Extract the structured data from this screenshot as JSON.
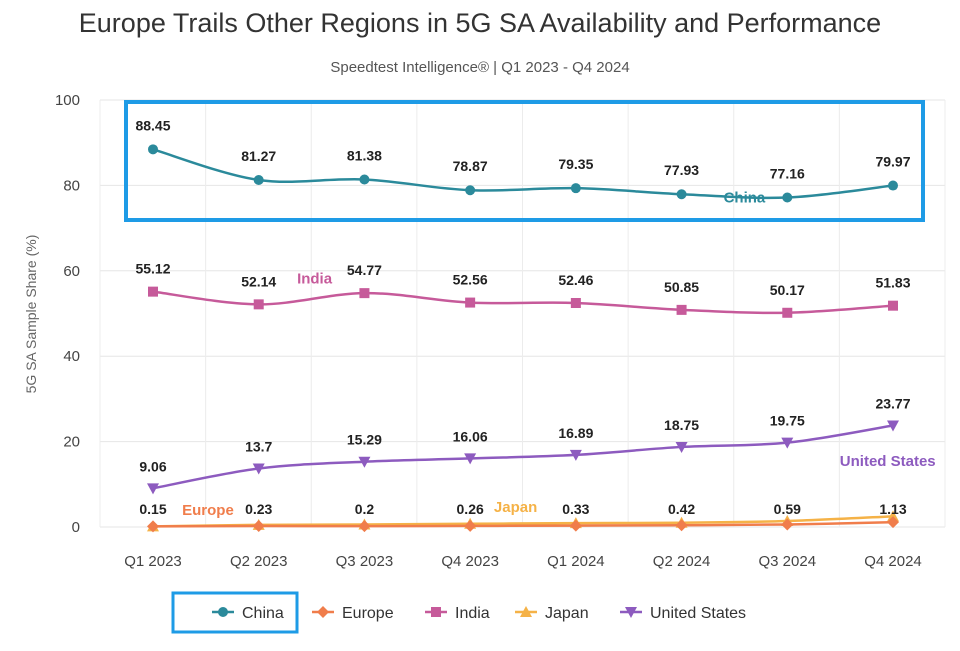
{
  "title": "Europe Trails Other Regions in 5G SA Availability and Performance",
  "subtitle": "Speedtest Intelligence® | Q1 2023 - Q4 2024",
  "chart_data": {
    "type": "line",
    "title": "Europe Trails Other Regions in 5G SA Availability and Performance",
    "subtitle": "Speedtest Intelligence® | Q1 2023 - Q4 2024",
    "xlabel": "",
    "ylabel": "5G SA Sample Share (%)",
    "ylim": [
      0,
      100
    ],
    "yticks": [
      0,
      20,
      40,
      60,
      80,
      100
    ],
    "grid": true,
    "legend_position": "bottom",
    "categories": [
      "Q1 2023",
      "Q2 2023",
      "Q3 2023",
      "Q4 2023",
      "Q1 2024",
      "Q2 2024",
      "Q3 2024",
      "Q4 2024"
    ],
    "series": [
      {
        "name": "China",
        "color": "#2b8a9b",
        "marker": "circle",
        "values": [
          88.45,
          81.27,
          81.38,
          78.87,
          79.35,
          77.93,
          77.16,
          79.97
        ]
      },
      {
        "name": "Europe",
        "color": "#f07d4b",
        "marker": "diamond",
        "values": [
          0.15,
          0.23,
          0.2,
          0.26,
          0.33,
          0.42,
          0.59,
          1.13
        ]
      },
      {
        "name": "India",
        "color": "#c65a9a",
        "marker": "square",
        "values": [
          55.12,
          52.14,
          54.77,
          52.56,
          52.46,
          50.85,
          50.17,
          51.83
        ]
      },
      {
        "name": "Japan",
        "color": "#f5b247",
        "marker": "triangle-up",
        "values": [
          0.15,
          0.5,
          0.6,
          0.75,
          0.9,
          1.0,
          1.4,
          2.5
        ]
      },
      {
        "name": "United States",
        "color": "#8d5bbf",
        "marker": "triangle-down",
        "values": [
          9.06,
          13.7,
          15.29,
          16.06,
          16.89,
          18.75,
          19.75,
          23.77
        ]
      }
    ],
    "data_labels": [
      {
        "series": "China",
        "labels": [
          "88.45",
          "81.27",
          "81.38",
          "78.87",
          "79.35",
          "77.93",
          "77.16",
          "79.97"
        ]
      },
      {
        "series": "India",
        "labels": [
          "55.12",
          "52.14",
          "54.77",
          "52.56",
          "52.46",
          "50.85",
          "50.17",
          "51.83"
        ]
      },
      {
        "series": "United States",
        "labels": [
          "9.06",
          "13.7",
          "15.29",
          "16.06",
          "16.89",
          "18.75",
          "19.75",
          "23.77"
        ]
      },
      {
        "series": "Europe",
        "labels": [
          "0.15",
          "0.23",
          "0.2",
          "0.26",
          "0.33",
          "0.42",
          "0.59",
          "1.13"
        ]
      }
    ],
    "series_annotations": [
      {
        "text": "China",
        "series": "China"
      },
      {
        "text": "India",
        "series": "India"
      },
      {
        "text": "United States",
        "series": "United States"
      },
      {
        "text": "Europe",
        "series": "Europe"
      },
      {
        "text": "Japan",
        "series": "Japan"
      }
    ],
    "highlights": [
      "China series box",
      "China legend entry"
    ]
  }
}
